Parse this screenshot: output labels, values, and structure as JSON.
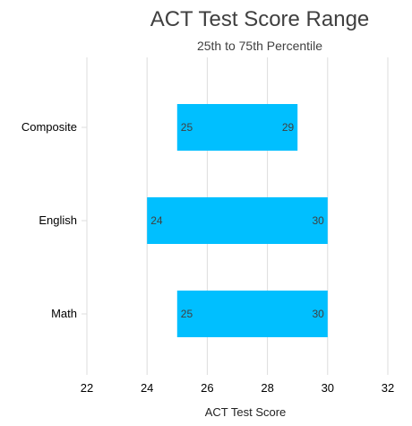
{
  "chart_data": {
    "type": "bar",
    "orientation": "horizontal-range",
    "title": "ACT Test Score Range",
    "subtitle": "25th to 75th Percentile",
    "xlabel": "ACT Test Score",
    "ylabel": "",
    "xlim": [
      22,
      32
    ],
    "xticks": [
      22,
      24,
      26,
      28,
      30,
      32
    ],
    "categories": [
      "Composite",
      "English",
      "Math"
    ],
    "series": [
      {
        "low": [
          25,
          24,
          25
        ],
        "high": [
          29,
          30,
          30
        ]
      }
    ],
    "bar_color": "#00BFFF",
    "grid": "vertical",
    "legend": "none"
  }
}
